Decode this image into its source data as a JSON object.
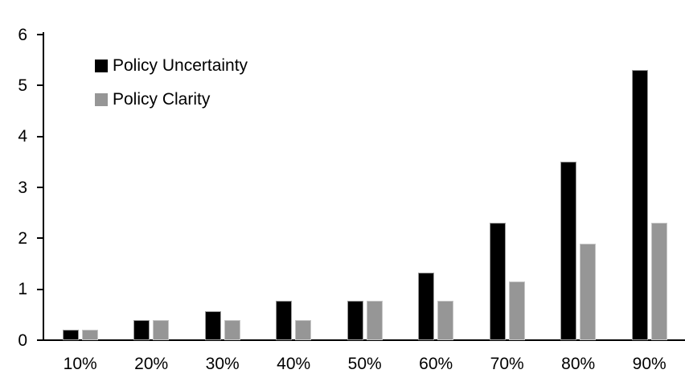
{
  "chart_data": {
    "type": "bar",
    "title": "",
    "xlabel": "",
    "ylabel": "",
    "categories": [
      "10%",
      "20%",
      "30%",
      "40%",
      "50%",
      "60%",
      "70%",
      "80%",
      "90%"
    ],
    "series": [
      {
        "name": "Policy Uncertainty",
        "color": "#000000",
        "values": [
          0.2,
          0.4,
          0.57,
          0.77,
          0.78,
          1.33,
          2.3,
          3.5,
          5.3
        ]
      },
      {
        "name": "Policy Clarity",
        "color": "#969696",
        "values": [
          0.2,
          0.4,
          0.4,
          0.4,
          0.77,
          0.77,
          1.15,
          1.9,
          2.3
        ]
      }
    ],
    "ylim": [
      0,
      6
    ],
    "yticks": [
      "0",
      "1",
      "2",
      "3",
      "4",
      "5",
      "6"
    ],
    "grid": false,
    "legend_position": "top-left"
  }
}
